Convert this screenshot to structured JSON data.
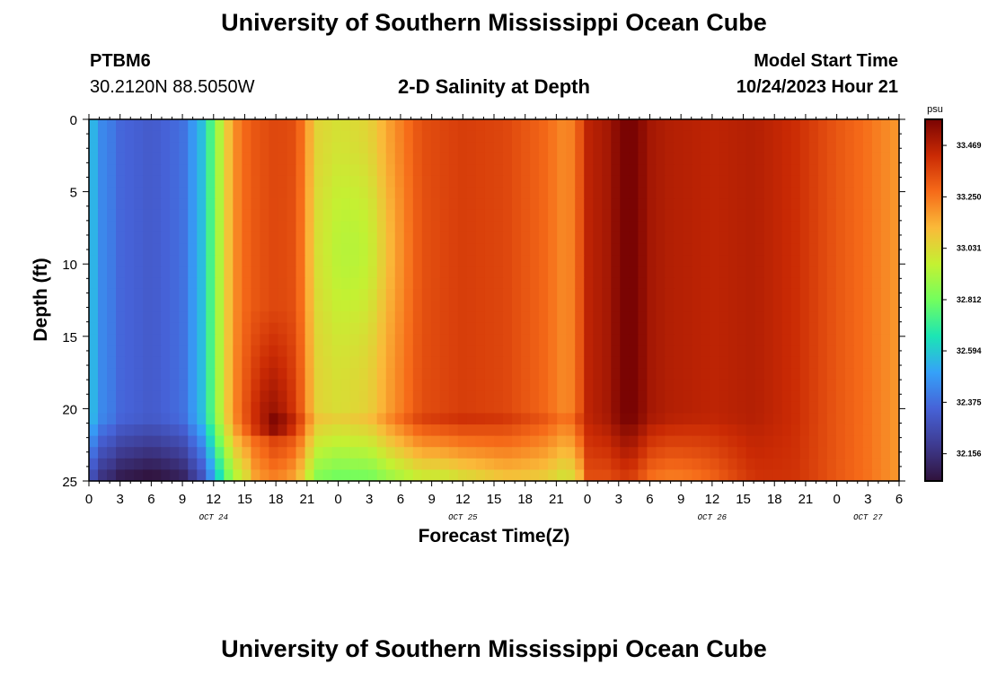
{
  "header": {
    "title": "University of Southern Mississippi Ocean Cube",
    "station": "PTBM6",
    "coords": "30.2120N  88.5050W",
    "subtitle": "2-D Salinity at Depth",
    "model_start_label": "Model Start Time",
    "model_start_value": "10/24/2023 Hour 21"
  },
  "footer": {
    "title": "University of Southern Mississippi Ocean Cube"
  },
  "chart_data": {
    "type": "heatmap",
    "title": "2-D Salinity at Depth",
    "xlabel": "Forecast Time(Z)",
    "ylabel": "Depth (ft)",
    "x_range_hours": [
      0,
      78
    ],
    "y_range_ft": [
      0,
      25
    ],
    "x_tick_labels": [
      "0",
      "3",
      "6",
      "9",
      "12",
      "15",
      "18",
      "21",
      "0",
      "3",
      "6",
      "9",
      "12",
      "15",
      "18",
      "21",
      "0",
      "3",
      "6",
      "9",
      "12",
      "15",
      "18",
      "21",
      "0",
      "3",
      "6"
    ],
    "date_labels": [
      {
        "label": "OCT 24",
        "hour": 12
      },
      {
        "label": "OCT 25",
        "hour": 36
      },
      {
        "label": "OCT 26",
        "hour": 60
      },
      {
        "label": "OCT 27",
        "hour": 75
      }
    ],
    "y_ticks": [
      0,
      5,
      10,
      15,
      20,
      25
    ],
    "colorbar": {
      "unit": "psu",
      "min": 32.04,
      "max": 33.58,
      "tick_values": [
        32.156,
        32.375,
        32.594,
        32.812,
        33.031,
        33.25,
        33.469
      ],
      "tick_labels": [
        "32.156",
        "32.375",
        "32.594",
        "32.812",
        "33.031",
        "33.250",
        "33.469"
      ],
      "colors": [
        "#30123b",
        "#3e3b91",
        "#4662d7",
        "#35a1f9",
        "#1be5b5",
        "#72fe5e",
        "#c4f132",
        "#faba39",
        "#f66b19",
        "#ca2a04",
        "#7a0403"
      ]
    },
    "surface_salinity_by_hour": [
      [
        0,
        32.65
      ],
      [
        1,
        32.52
      ],
      [
        2,
        32.42
      ],
      [
        3,
        32.36
      ],
      [
        6,
        32.32
      ],
      [
        9,
        32.38
      ],
      [
        11,
        32.58
      ],
      [
        12,
        32.8
      ],
      [
        13,
        33.02
      ],
      [
        14,
        33.2
      ],
      [
        15,
        33.28
      ],
      [
        16,
        33.32
      ],
      [
        18,
        33.36
      ],
      [
        20,
        33.34
      ],
      [
        21,
        33.18
      ],
      [
        22,
        33.05
      ],
      [
        24,
        33.02
      ],
      [
        27,
        33.06
      ],
      [
        29,
        33.18
      ],
      [
        32,
        33.34
      ],
      [
        36,
        33.38
      ],
      [
        40,
        33.36
      ],
      [
        44,
        33.28
      ],
      [
        46,
        33.2
      ],
      [
        47,
        33.28
      ],
      [
        48,
        33.45
      ],
      [
        50,
        33.5
      ],
      [
        51,
        33.56
      ],
      [
        52,
        33.6
      ],
      [
        53,
        33.56
      ],
      [
        54,
        33.5
      ],
      [
        56,
        33.47
      ],
      [
        60,
        33.45
      ],
      [
        64,
        33.47
      ],
      [
        68,
        33.42
      ],
      [
        72,
        33.32
      ],
      [
        75,
        33.26
      ],
      [
        78,
        33.18
      ]
    ]
  }
}
